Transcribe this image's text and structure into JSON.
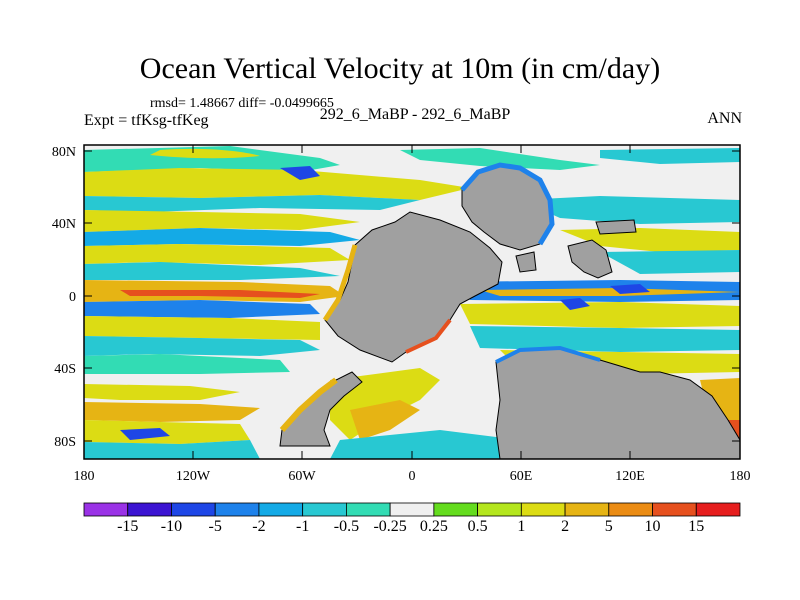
{
  "title": "Ocean Vertical Velocity at 10m (in cm/day)",
  "stats": "rmsd= 1.48667  diff= -0.0499665",
  "experiment": "Expt = tfKsg-tfKeg",
  "comparison": "292_6_MaBP - 292_6_MaBP",
  "season": "ANN",
  "lat_labels": [
    "80N",
    "40N",
    "0",
    "40S",
    "80S"
  ],
  "lon_labels": [
    "180",
    "120W",
    "60W",
    "0",
    "60E",
    "120E",
    "180"
  ],
  "colorbar": {
    "levels": [
      "-15",
      "-10",
      "-5",
      "-2",
      "-1",
      "-0.5",
      "-0.25",
      "0.25",
      "0.5",
      "1",
      "2",
      "5",
      "10",
      "15"
    ],
    "colors": [
      "#9a32e6",
      "#3c14d2",
      "#1e46e6",
      "#1e82eb",
      "#14aae6",
      "#28c8d2",
      "#32dcb4",
      "#f0f0f0",
      "#64dc1e",
      "#b4e61e",
      "#dcdc14",
      "#e6b414",
      "#eb8c14",
      "#e6501e",
      "#e61e1e"
    ]
  },
  "land_color": "#a0a0a0",
  "background_color": "#f0f0f0"
}
